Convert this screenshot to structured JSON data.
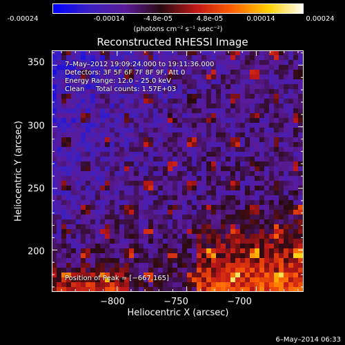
{
  "colorbar": {
    "ticks": [
      "-0.00024",
      "-0.00014",
      "-4.8e-05",
      "4.8e-05",
      "0.00014",
      "0.00024"
    ],
    "units": "(photons cm⁻² s⁻¹ asec⁻²)",
    "min": -0.00024,
    "max": 0.00024,
    "colors": [
      "#0000ff",
      "#3a20c0",
      "#5a1a9a",
      "#2a0a10",
      "#c01818",
      "#ff6000",
      "#ffd000",
      "#ffffff"
    ]
  },
  "chart_data": {
    "type": "heatmap",
    "title": "Reconstructed RHESSI Image",
    "xlabel": "Heliocentric X (arcsec)",
    "ylabel": "Heliocentric Y (arcsec)",
    "xlim": [
      -847,
      -666
    ],
    "ylim": [
      166,
      362
    ],
    "x_ticks": [
      -800,
      -750,
      -700
    ],
    "y_ticks": [
      200,
      250,
      300,
      350
    ],
    "x_tick_labels": [
      "−800",
      "−750",
      "−700"
    ],
    "y_tick_labels": [
      "200",
      "250",
      "300",
      "350"
    ],
    "peak_position": [
      -667,
      165
    ]
  },
  "annotations": {
    "time_range": "7–May–2012 19:09:24.000 to 19:11:36.000",
    "detectors": "Detectors: 3F 5F 6F 7F 8F 9F, Att 0",
    "energy": "Energy Range: 12.0 – 25.0 keV",
    "method": "Clean",
    "counts": "Total counts: 1.57E+03",
    "peak": "Position of Peak = [−667,165]"
  },
  "timestamp": "6–May–2014 06:33"
}
